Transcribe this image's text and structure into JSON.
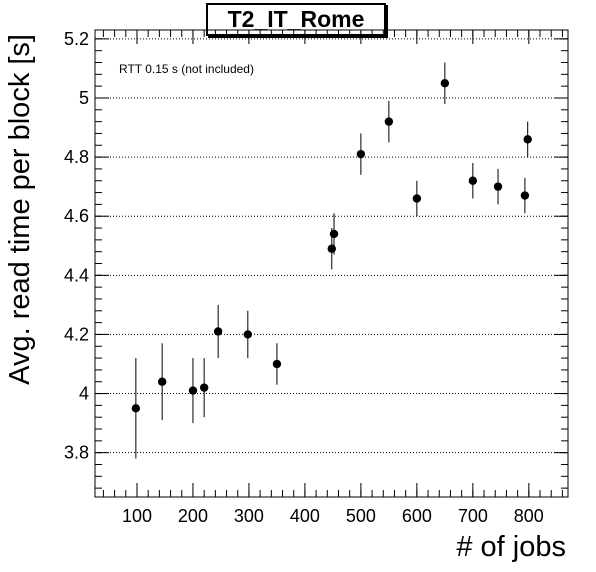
{
  "chart_data": {
    "type": "scatter",
    "title": "T2_IT_Rome",
    "xlabel": "# of jobs",
    "ylabel": "Avg. read time per block [s]",
    "annotation": "RTT 0.15 s (not included)",
    "xlim": [
      25,
      870
    ],
    "ylim": [
      3.65,
      5.23
    ],
    "x_ticks": [
      100,
      200,
      300,
      400,
      500,
      600,
      700,
      800
    ],
    "x_tick_labels": [
      "100",
      "200",
      "300",
      "400",
      "500",
      "600",
      "700",
      "800"
    ],
    "y_ticks": [
      3.8,
      4.0,
      4.2,
      4.4,
      4.6,
      4.8,
      5.0,
      5.2
    ],
    "y_tick_labels": [
      "3.8",
      "4",
      "4.2",
      "4.4",
      "4.6",
      "4.8",
      "5",
      "5.2"
    ],
    "grid": "horizontal dotted",
    "points": [
      {
        "x": 98,
        "y": 3.95,
        "err": 0.17
      },
      {
        "x": 145,
        "y": 4.04,
        "err": 0.13
      },
      {
        "x": 200,
        "y": 4.01,
        "err": 0.11
      },
      {
        "x": 220,
        "y": 4.02,
        "err": 0.1
      },
      {
        "x": 245,
        "y": 4.21,
        "err": 0.09
      },
      {
        "x": 298,
        "y": 4.2,
        "err": 0.08
      },
      {
        "x": 350,
        "y": 4.1,
        "err": 0.07
      },
      {
        "x": 448,
        "y": 4.49,
        "err": 0.07
      },
      {
        "x": 452,
        "y": 4.54,
        "err": 0.07
      },
      {
        "x": 500,
        "y": 4.81,
        "err": 0.07
      },
      {
        "x": 550,
        "y": 4.92,
        "err": 0.07
      },
      {
        "x": 600,
        "y": 4.66,
        "err": 0.06
      },
      {
        "x": 650,
        "y": 5.05,
        "err": 0.07
      },
      {
        "x": 700,
        "y": 4.72,
        "err": 0.06
      },
      {
        "x": 745,
        "y": 4.7,
        "err": 0.06
      },
      {
        "x": 793,
        "y": 4.67,
        "err": 0.06
      },
      {
        "x": 798,
        "y": 4.86,
        "err": 0.06
      }
    ]
  }
}
